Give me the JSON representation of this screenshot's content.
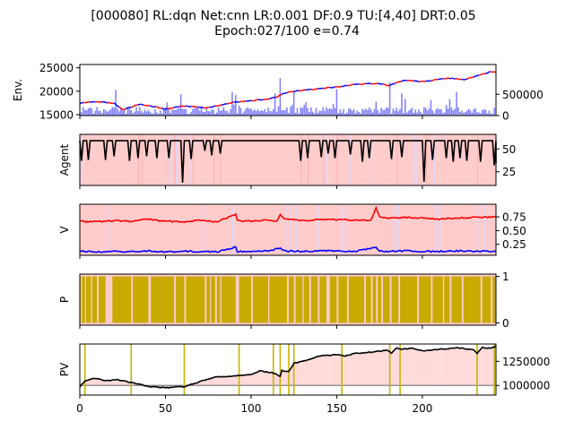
{
  "title_line1": "[000080] RL:dqn Net:cnn LR:0.001 DF:0.9 TU:[4,40] DRT:0.05",
  "title_line2": "Epoch:027/100 e=0.74",
  "colors": {
    "env_line_up": "#ff0000",
    "env_line_down": "#0000ff",
    "env_volume": "#7f7fff",
    "agent_line": "#000000",
    "agent_bg_buy": "#ffcccc",
    "agent_bg_other": "#d9d9ff",
    "v_series_1": "#ff0000",
    "v_series_2": "#0000ff",
    "p_fill": "#c8aa00",
    "pv_line": "#000000",
    "pv_gain_fill": "#ffd9d9",
    "pv_loss_fill": "#d0c8e0",
    "pv_marker": "#c8b400",
    "pv_baseline": "#808080"
  },
  "chart_data": [
    {
      "type": "line",
      "panel": "env",
      "ylabel": "Env.",
      "xlim": [
        0,
        243
      ],
      "ylim": [
        14800,
        25700
      ],
      "yticks": [
        "15000",
        "20000",
        "25000"
      ],
      "ytick_values": [
        15000,
        20000,
        25000
      ],
      "secondary_ylim": [
        0,
        1200000
      ],
      "secondary_yticks": [
        "0",
        "500000"
      ],
      "secondary_ytick_values": [
        0,
        500000
      ],
      "price_keypoints": {
        "x": [
          0,
          10,
          20,
          25,
          35,
          50,
          60,
          75,
          90,
          100,
          110,
          115,
          120,
          130,
          150,
          160,
          175,
          180,
          190,
          200,
          215,
          225,
          235,
          240,
          243
        ],
        "y": [
          17500,
          17800,
          17400,
          16100,
          17200,
          16200,
          16800,
          16500,
          17600,
          18000,
          18300,
          18800,
          19600,
          20200,
          20900,
          21400,
          21700,
          21200,
          22400,
          22000,
          22800,
          22500,
          23600,
          24200,
          24000
        ]
      },
      "volume_spikes": {
        "x": [
          21,
          59,
          89,
          91,
          114,
          117,
          125,
          150,
          181,
          188,
          220
        ],
        "y": [
          600000,
          500000,
          550000,
          480000,
          520000,
          880000,
          560000,
          620000,
          780000,
          520000,
          550000
        ]
      }
    },
    {
      "type": "line",
      "panel": "agent",
      "ylabel": "Agent",
      "xlim": [
        0,
        243
      ],
      "ylim": [
        10,
        66
      ],
      "yticks": [
        "25",
        "50"
      ],
      "ytick_values": [
        25,
        50
      ],
      "high_value": 59,
      "dips": [
        {
          "x": 1,
          "y": 37
        },
        {
          "x": 5,
          "y": 38
        },
        {
          "x": 15,
          "y": 38
        },
        {
          "x": 20,
          "y": 42
        },
        {
          "x": 29,
          "y": 37
        },
        {
          "x": 34,
          "y": 40
        },
        {
          "x": 39,
          "y": 42
        },
        {
          "x": 45,
          "y": 40
        },
        {
          "x": 52,
          "y": 40
        },
        {
          "x": 60,
          "y": 13
        },
        {
          "x": 65,
          "y": 39
        },
        {
          "x": 73,
          "y": 48
        },
        {
          "x": 77,
          "y": 43
        },
        {
          "x": 82,
          "y": 45
        },
        {
          "x": 129,
          "y": 37
        },
        {
          "x": 133,
          "y": 40
        },
        {
          "x": 141,
          "y": 41
        },
        {
          "x": 145,
          "y": 45
        },
        {
          "x": 149,
          "y": 40
        },
        {
          "x": 158,
          "y": 44
        },
        {
          "x": 165,
          "y": 36
        },
        {
          "x": 169,
          "y": 40
        },
        {
          "x": 182,
          "y": 39
        },
        {
          "x": 188,
          "y": 41
        },
        {
          "x": 201,
          "y": 14
        },
        {
          "x": 206,
          "y": 38
        },
        {
          "x": 214,
          "y": 40
        },
        {
          "x": 218,
          "y": 36
        },
        {
          "x": 222,
          "y": 40
        },
        {
          "x": 226,
          "y": 37
        },
        {
          "x": 234,
          "y": 36
        },
        {
          "x": 242,
          "y": 32
        }
      ]
    },
    {
      "type": "line",
      "panel": "v",
      "ylabel": "V",
      "xlim": [
        0,
        243
      ],
      "ylim": [
        0.05,
        0.98
      ],
      "yticks": [
        "0.25",
        "0.50",
        "0.75"
      ],
      "ytick_values": [
        0.25,
        0.5,
        0.75
      ],
      "series": [
        {
          "base": 0.68,
          "x": [
            0,
            10,
            20,
            30,
            40,
            50,
            60,
            70,
            80,
            91,
            92,
            100,
            110,
            115,
            117,
            120,
            130,
            140,
            150,
            160,
            170,
            173,
            175,
            180,
            190,
            200,
            210,
            220,
            230,
            243
          ],
          "y": [
            0.67,
            0.66,
            0.68,
            0.67,
            0.71,
            0.67,
            0.66,
            0.69,
            0.66,
            0.8,
            0.68,
            0.67,
            0.69,
            0.66,
            0.78,
            0.71,
            0.68,
            0.7,
            0.7,
            0.69,
            0.69,
            0.91,
            0.75,
            0.72,
            0.74,
            0.73,
            0.71,
            0.73,
            0.74,
            0.75
          ]
        },
        {
          "base": 0.12,
          "x": [
            0,
            10,
            20,
            30,
            40,
            50,
            60,
            70,
            80,
            91,
            92,
            100,
            110,
            117,
            120,
            130,
            140,
            150,
            160,
            173,
            175,
            180,
            190,
            200,
            210,
            220,
            230,
            243
          ],
          "y": [
            0.13,
            0.11,
            0.12,
            0.12,
            0.13,
            0.11,
            0.12,
            0.12,
            0.11,
            0.2,
            0.12,
            0.12,
            0.13,
            0.18,
            0.13,
            0.12,
            0.13,
            0.13,
            0.12,
            0.19,
            0.13,
            0.12,
            0.13,
            0.12,
            0.12,
            0.13,
            0.13,
            0.12
          ]
        }
      ]
    },
    {
      "type": "area",
      "panel": "p",
      "ylabel": "P",
      "xlim": [
        0,
        243
      ],
      "ylim": [
        -0.05,
        1.05
      ],
      "yticks": [
        "0",
        "1"
      ],
      "ytick_values": [
        0,
        1
      ],
      "off_intervals": [
        [
          0.5,
          1.2
        ],
        [
          3,
          3.6
        ],
        [
          6.5,
          7.2
        ],
        [
          10,
          11
        ],
        [
          15,
          19
        ],
        [
          30,
          31
        ],
        [
          40,
          41.5
        ],
        [
          55,
          56
        ],
        [
          61,
          62
        ],
        [
          73,
          74
        ],
        [
          76,
          76.6
        ],
        [
          79,
          80
        ],
        [
          82,
          82.7
        ],
        [
          91,
          93
        ],
        [
          100,
          101
        ],
        [
          110,
          110.7
        ],
        [
          121,
          122
        ],
        [
          125,
          126
        ],
        [
          130,
          130.7
        ],
        [
          134,
          135
        ],
        [
          139,
          140
        ],
        [
          144,
          146
        ],
        [
          150,
          151
        ],
        [
          156,
          157
        ],
        [
          166,
          167
        ],
        [
          170,
          171
        ],
        [
          173,
          174
        ],
        [
          176,
          177
        ],
        [
          181,
          182
        ],
        [
          186,
          187
        ],
        [
          197,
          198
        ],
        [
          205,
          206
        ],
        [
          212,
          212.7
        ],
        [
          216,
          217
        ],
        [
          223,
          224
        ],
        [
          234,
          235
        ],
        [
          240,
          241
        ]
      ]
    },
    {
      "type": "line",
      "panel": "pv",
      "ylabel": "PV",
      "xlabel": "",
      "xlim": [
        0,
        243
      ],
      "xticks": [
        "0",
        "50",
        "100",
        "150",
        "200"
      ],
      "xtick_values": [
        0,
        50,
        100,
        150,
        200
      ],
      "ylim": [
        900000,
        1430000
      ],
      "yticks": [
        "1000000",
        "1250000"
      ],
      "ytick_values": [
        1000000,
        1250000
      ],
      "baseline": 1000000,
      "markers_x": [
        3,
        30,
        61,
        93,
        113,
        117,
        122,
        125,
        153,
        181,
        187,
        232,
        242
      ],
      "x": [
        0,
        3,
        8,
        15,
        22,
        30,
        40,
        50,
        61,
        70,
        80,
        93,
        100,
        105,
        113,
        117,
        118,
        122,
        125,
        130,
        140,
        150,
        155,
        160,
        170,
        180,
        182,
        185,
        187,
        195,
        200,
        210,
        220,
        230,
        232,
        235,
        240,
        243
      ],
      "y": [
        985000,
        1045000,
        1075000,
        1050000,
        1060000,
        1030000,
        990000,
        975000,
        988000,
        1040000,
        1090000,
        1102000,
        1115000,
        1150000,
        1130000,
        1090000,
        1155000,
        1140000,
        1230000,
        1250000,
        1305000,
        1320000,
        1305000,
        1330000,
        1345000,
        1365000,
        1330000,
        1392000,
        1375000,
        1385000,
        1360000,
        1375000,
        1392000,
        1372000,
        1330000,
        1395000,
        1385000,
        1408000
      ]
    }
  ]
}
